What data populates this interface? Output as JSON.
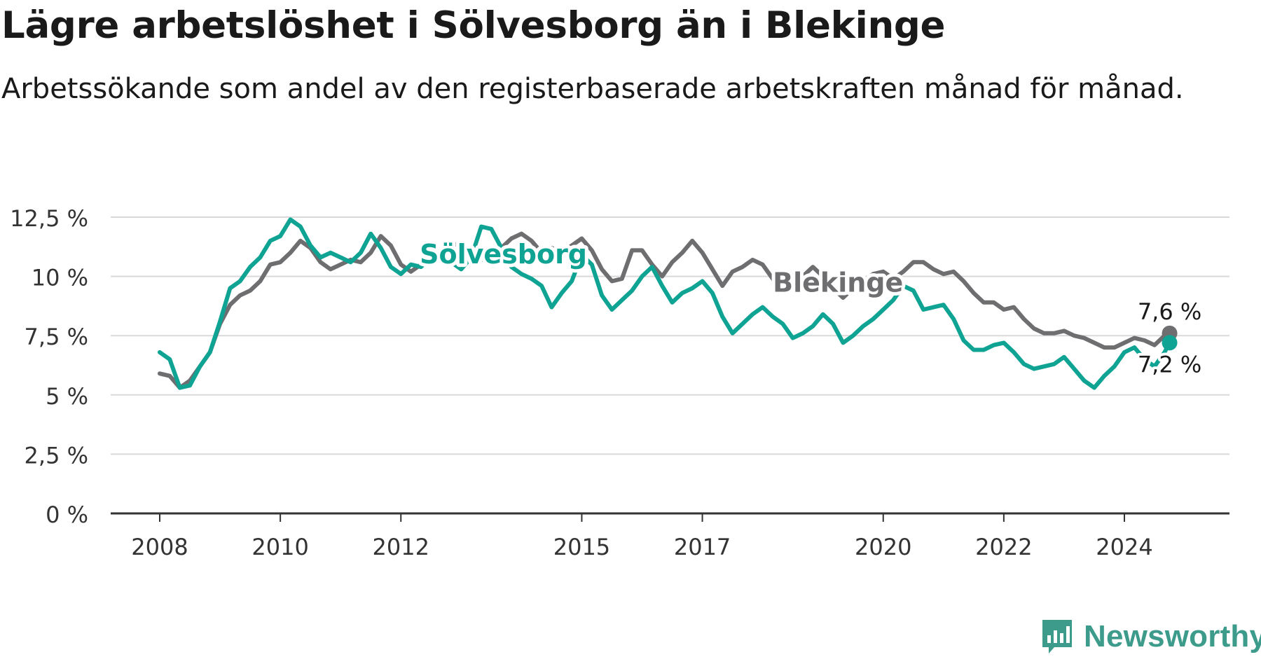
{
  "header": {
    "title": "Lägre arbetslöshet i Sölvesborg än i Blekinge",
    "subtitle": "Arbetssökande som andel av den registerbaserade arbetskraften månad för månad."
  },
  "logo": {
    "text": "Newsworthy",
    "icon": "bar-chart-speech-bubble-icon",
    "color": "#3d9b8c"
  },
  "chart_data": {
    "type": "line",
    "title": "Lägre arbetslöshet i Sölvesborg än i Blekinge",
    "subtitle": "Arbetssökande som andel av den registerbaserade arbetskraften månad för månad.",
    "xlabel": "",
    "ylabel": "",
    "x_ticks": [
      "2008",
      "2010",
      "2012",
      "2015",
      "2017",
      "2020",
      "2022",
      "2024"
    ],
    "y_ticks": [
      "0 %",
      "2,5 %",
      "5 %",
      "7,5 %",
      "10 %",
      "12,5 %"
    ],
    "ylim": [
      0,
      12.5
    ],
    "xlim": [
      "2008-01",
      "2024-10"
    ],
    "grid": "horizontal",
    "series": [
      {
        "name": "Blekinge",
        "color": "#6e6e71",
        "end_label": "7,6 %",
        "points": [
          [
            "2008-01",
            5.9
          ],
          [
            "2008-03",
            5.8
          ],
          [
            "2008-05",
            5.3
          ],
          [
            "2008-07",
            5.6
          ],
          [
            "2008-09",
            6.2
          ],
          [
            "2008-11",
            6.8
          ],
          [
            "2009-01",
            8.0
          ],
          [
            "2009-03",
            8.8
          ],
          [
            "2009-05",
            9.2
          ],
          [
            "2009-07",
            9.4
          ],
          [
            "2009-09",
            9.8
          ],
          [
            "2009-11",
            10.5
          ],
          [
            "2010-01",
            10.6
          ],
          [
            "2010-03",
            11.0
          ],
          [
            "2010-05",
            11.5
          ],
          [
            "2010-07",
            11.2
          ],
          [
            "2010-09",
            10.6
          ],
          [
            "2010-11",
            10.3
          ],
          [
            "2011-01",
            10.5
          ],
          [
            "2011-03",
            10.7
          ],
          [
            "2011-05",
            10.6
          ],
          [
            "2011-07",
            11.0
          ],
          [
            "2011-09",
            11.7
          ],
          [
            "2011-11",
            11.3
          ],
          [
            "2012-01",
            10.5
          ],
          [
            "2012-03",
            10.2
          ],
          [
            "2012-05",
            10.5
          ],
          [
            "2012-07",
            10.6
          ],
          [
            "2012-09",
            10.9
          ],
          [
            "2012-11",
            11.3
          ],
          [
            "2013-01",
            11.4
          ],
          [
            "2013-03",
            11.0
          ],
          [
            "2013-05",
            10.7
          ],
          [
            "2013-07",
            10.8
          ],
          [
            "2013-09",
            11.2
          ],
          [
            "2013-11",
            11.6
          ],
          [
            "2014-01",
            11.8
          ],
          [
            "2014-03",
            11.5
          ],
          [
            "2014-05",
            11.0
          ],
          [
            "2014-07",
            11.2
          ],
          [
            "2014-09",
            11.0
          ],
          [
            "2014-11",
            11.3
          ],
          [
            "2015-01",
            11.6
          ],
          [
            "2015-03",
            11.1
          ],
          [
            "2015-05",
            10.3
          ],
          [
            "2015-07",
            9.8
          ],
          [
            "2015-09",
            9.9
          ],
          [
            "2015-11",
            11.1
          ],
          [
            "2016-01",
            11.1
          ],
          [
            "2016-03",
            10.5
          ],
          [
            "2016-05",
            10.0
          ],
          [
            "2016-07",
            10.6
          ],
          [
            "2016-09",
            11.0
          ],
          [
            "2016-11",
            11.5
          ],
          [
            "2017-01",
            11.0
          ],
          [
            "2017-03",
            10.3
          ],
          [
            "2017-05",
            9.6
          ],
          [
            "2017-07",
            10.2
          ],
          [
            "2017-09",
            10.4
          ],
          [
            "2017-11",
            10.7
          ],
          [
            "2018-01",
            10.5
          ],
          [
            "2018-03",
            9.9
          ],
          [
            "2018-05",
            9.3
          ],
          [
            "2018-07",
            9.7
          ],
          [
            "2018-09",
            10.0
          ],
          [
            "2018-11",
            10.4
          ],
          [
            "2019-01",
            10.0
          ],
          [
            "2019-03",
            9.5
          ],
          [
            "2019-05",
            9.1
          ],
          [
            "2019-07",
            9.5
          ],
          [
            "2019-09",
            9.8
          ],
          [
            "2019-11",
            10.1
          ],
          [
            "2020-01",
            10.2
          ],
          [
            "2020-03",
            9.9
          ],
          [
            "2020-05",
            10.2
          ],
          [
            "2020-07",
            10.6
          ],
          [
            "2020-09",
            10.6
          ],
          [
            "2020-11",
            10.3
          ],
          [
            "2021-01",
            10.1
          ],
          [
            "2021-03",
            10.2
          ],
          [
            "2021-05",
            9.8
          ],
          [
            "2021-07",
            9.3
          ],
          [
            "2021-09",
            8.9
          ],
          [
            "2021-11",
            8.9
          ],
          [
            "2022-01",
            8.6
          ],
          [
            "2022-03",
            8.7
          ],
          [
            "2022-05",
            8.2
          ],
          [
            "2022-07",
            7.8
          ],
          [
            "2022-09",
            7.6
          ],
          [
            "2022-11",
            7.6
          ],
          [
            "2023-01",
            7.7
          ],
          [
            "2023-03",
            7.5
          ],
          [
            "2023-05",
            7.4
          ],
          [
            "2023-07",
            7.2
          ],
          [
            "2023-09",
            7.0
          ],
          [
            "2023-11",
            7.0
          ],
          [
            "2024-01",
            7.2
          ],
          [
            "2024-03",
            7.4
          ],
          [
            "2024-05",
            7.3
          ],
          [
            "2024-07",
            7.1
          ],
          [
            "2024-09",
            7.5
          ],
          [
            "2024-10",
            7.6
          ]
        ]
      },
      {
        "name": "Sölvesborg",
        "color": "#0fa394",
        "end_label": "7,2 %",
        "points": [
          [
            "2008-01",
            6.8
          ],
          [
            "2008-03",
            6.5
          ],
          [
            "2008-05",
            5.3
          ],
          [
            "2008-07",
            5.4
          ],
          [
            "2008-09",
            6.2
          ],
          [
            "2008-11",
            6.8
          ],
          [
            "2009-01",
            8.1
          ],
          [
            "2009-03",
            9.5
          ],
          [
            "2009-05",
            9.8
          ],
          [
            "2009-07",
            10.4
          ],
          [
            "2009-09",
            10.8
          ],
          [
            "2009-11",
            11.5
          ],
          [
            "2010-01",
            11.7
          ],
          [
            "2010-03",
            12.4
          ],
          [
            "2010-05",
            12.1
          ],
          [
            "2010-07",
            11.3
          ],
          [
            "2010-09",
            10.8
          ],
          [
            "2010-11",
            11.0
          ],
          [
            "2011-01",
            10.8
          ],
          [
            "2011-03",
            10.6
          ],
          [
            "2011-05",
            11.0
          ],
          [
            "2011-07",
            11.8
          ],
          [
            "2011-09",
            11.2
          ],
          [
            "2011-11",
            10.4
          ],
          [
            "2012-01",
            10.1
          ],
          [
            "2012-03",
            10.5
          ],
          [
            "2012-05",
            10.4
          ],
          [
            "2012-07",
            10.8
          ],
          [
            "2012-09",
            11.1
          ],
          [
            "2012-11",
            10.6
          ],
          [
            "2013-01",
            10.3
          ],
          [
            "2013-03",
            10.8
          ],
          [
            "2013-05",
            12.1
          ],
          [
            "2013-07",
            12.0
          ],
          [
            "2013-09",
            11.2
          ],
          [
            "2013-11",
            10.4
          ],
          [
            "2014-01",
            10.1
          ],
          [
            "2014-03",
            9.9
          ],
          [
            "2014-05",
            9.6
          ],
          [
            "2014-07",
            8.7
          ],
          [
            "2014-09",
            9.3
          ],
          [
            "2014-11",
            9.8
          ],
          [
            "2015-01",
            10.9
          ],
          [
            "2015-03",
            10.5
          ],
          [
            "2015-05",
            9.2
          ],
          [
            "2015-07",
            8.6
          ],
          [
            "2015-09",
            9.0
          ],
          [
            "2015-11",
            9.4
          ],
          [
            "2016-01",
            10.0
          ],
          [
            "2016-03",
            10.4
          ],
          [
            "2016-05",
            9.6
          ],
          [
            "2016-07",
            8.9
          ],
          [
            "2016-09",
            9.3
          ],
          [
            "2016-11",
            9.5
          ],
          [
            "2017-01",
            9.8
          ],
          [
            "2017-03",
            9.3
          ],
          [
            "2017-05",
            8.3
          ],
          [
            "2017-07",
            7.6
          ],
          [
            "2017-09",
            8.0
          ],
          [
            "2017-11",
            8.4
          ],
          [
            "2018-01",
            8.7
          ],
          [
            "2018-03",
            8.3
          ],
          [
            "2018-05",
            8.0
          ],
          [
            "2018-07",
            7.4
          ],
          [
            "2018-09",
            7.6
          ],
          [
            "2018-11",
            7.9
          ],
          [
            "2019-01",
            8.4
          ],
          [
            "2019-03",
            8.0
          ],
          [
            "2019-05",
            7.2
          ],
          [
            "2019-07",
            7.5
          ],
          [
            "2019-09",
            7.9
          ],
          [
            "2019-11",
            8.2
          ],
          [
            "2020-01",
            8.6
          ],
          [
            "2020-03",
            9.0
          ],
          [
            "2020-05",
            9.6
          ],
          [
            "2020-07",
            9.4
          ],
          [
            "2020-09",
            8.6
          ],
          [
            "2020-11",
            8.7
          ],
          [
            "2021-01",
            8.8
          ],
          [
            "2021-03",
            8.2
          ],
          [
            "2021-05",
            7.3
          ],
          [
            "2021-07",
            6.9
          ],
          [
            "2021-09",
            6.9
          ],
          [
            "2021-11",
            7.1
          ],
          [
            "2022-01",
            7.2
          ],
          [
            "2022-03",
            6.8
          ],
          [
            "2022-05",
            6.3
          ],
          [
            "2022-07",
            6.1
          ],
          [
            "2022-09",
            6.2
          ],
          [
            "2022-11",
            6.3
          ],
          [
            "2023-01",
            6.6
          ],
          [
            "2023-03",
            6.1
          ],
          [
            "2023-05",
            5.6
          ],
          [
            "2023-07",
            5.3
          ],
          [
            "2023-09",
            5.8
          ],
          [
            "2023-11",
            6.2
          ],
          [
            "2024-01",
            6.8
          ],
          [
            "2024-03",
            7.0
          ],
          [
            "2024-05",
            6.5
          ],
          [
            "2024-07",
            6.2
          ],
          [
            "2024-09",
            6.8
          ],
          [
            "2024-10",
            7.2
          ]
        ]
      }
    ]
  }
}
